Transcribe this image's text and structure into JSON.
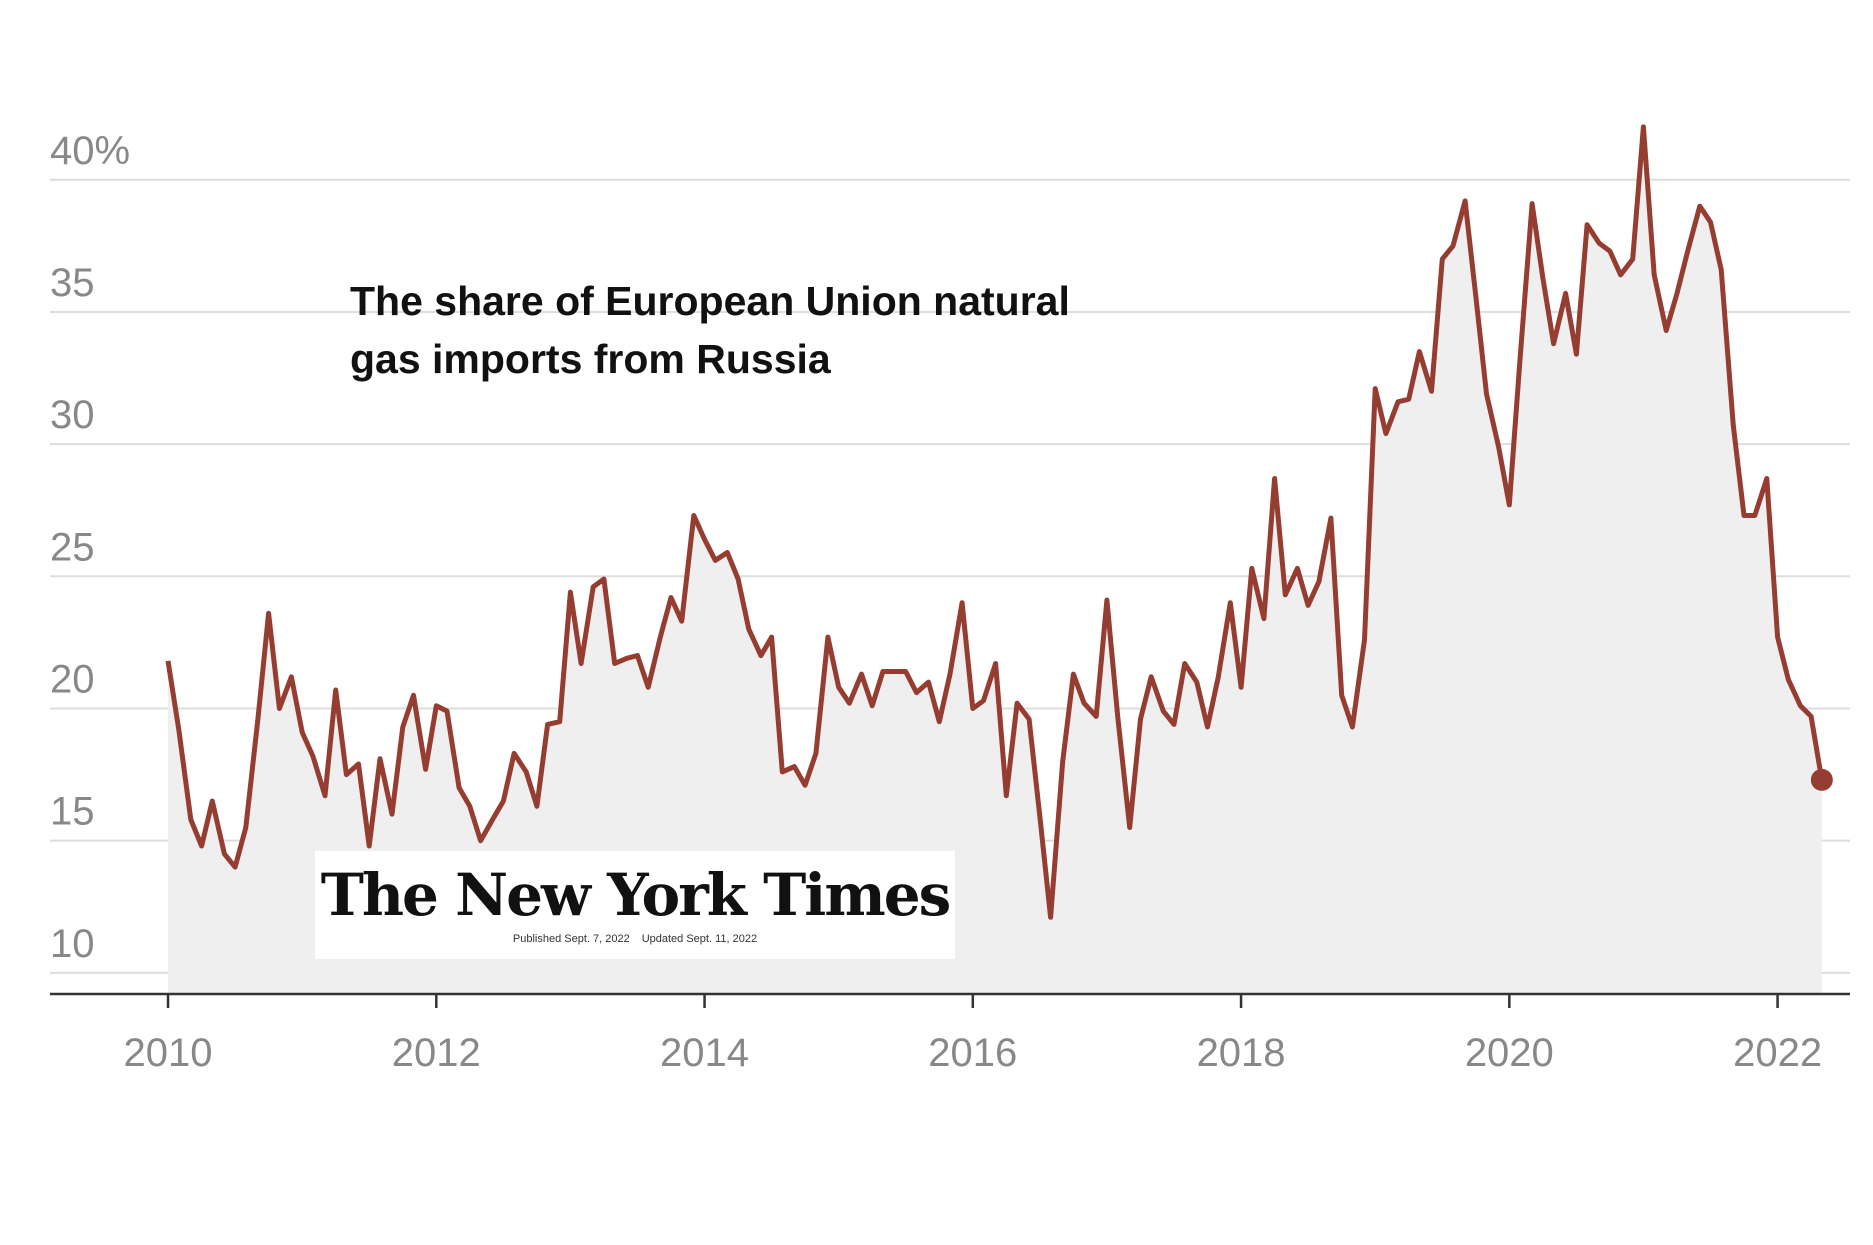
{
  "chart_data": {
    "type": "line",
    "title": "The share of European Union natural gas imports from Russia",
    "x": [
      2010,
      2010.08,
      2010.17,
      2010.25,
      2010.33,
      2010.42,
      2010.5,
      2010.58,
      2010.67,
      2010.75,
      2010.83,
      2010.92,
      2011,
      2011.08,
      2011.17,
      2011.25,
      2011.33,
      2011.42,
      2011.5,
      2011.58,
      2011.67,
      2011.75,
      2011.83,
      2011.92,
      2012,
      2012.08,
      2012.17,
      2012.25,
      2012.33,
      2012.42,
      2012.5,
      2012.58,
      2012.67,
      2012.75,
      2012.83,
      2012.92,
      2013,
      2013.08,
      2013.17,
      2013.25,
      2013.33,
      2013.42,
      2013.5,
      2013.58,
      2013.67,
      2013.75,
      2013.83,
      2013.92,
      2014,
      2014.08,
      2014.17,
      2014.25,
      2014.33,
      2014.42,
      2014.5,
      2014.58,
      2014.67,
      2014.75,
      2014.83,
      2014.92,
      2015,
      2015.08,
      2015.17,
      2015.25,
      2015.33,
      2015.42,
      2015.5,
      2015.58,
      2015.67,
      2015.75,
      2015.83,
      2015.92,
      2016,
      2016.08,
      2016.17,
      2016.25,
      2016.33,
      2016.42,
      2016.5,
      2016.58,
      2016.67,
      2016.75,
      2016.83,
      2016.92,
      2017,
      2017.08,
      2017.17,
      2017.25,
      2017.33,
      2017.42,
      2017.5,
      2017.58,
      2017.67,
      2017.75,
      2017.83,
      2017.92,
      2018,
      2018.08,
      2018.17,
      2018.25,
      2018.33,
      2018.42,
      2018.5,
      2018.58,
      2018.67,
      2018.75,
      2018.83,
      2018.92,
      2019,
      2019.08,
      2019.17,
      2019.25,
      2019.33,
      2019.42,
      2019.5,
      2019.58,
      2019.67,
      2019.75,
      2019.83,
      2019.92,
      2020,
      2020.08,
      2020.17,
      2020.25,
      2020.33,
      2020.42,
      2020.5,
      2020.58,
      2020.67,
      2020.75,
      2020.83,
      2020.92,
      2021,
      2021.08,
      2021.17,
      2021.25,
      2021.33,
      2021.42,
      2021.5,
      2021.58,
      2021.67,
      2021.75,
      2021.83,
      2021.92,
      2022,
      2022.08,
      2022.17,
      2022.25,
      2022.33
    ],
    "series": [
      {
        "name": "Share from Russia",
        "color": "#963d31",
        "values": [
          21.8,
          19.2,
          15.8,
          14.8,
          16.5,
          14.5,
          14.0,
          15.5,
          19.6,
          23.6,
          20.0,
          21.2,
          19.1,
          18.2,
          16.7,
          20.7,
          17.5,
          17.9,
          14.8,
          18.1,
          16.0,
          19.3,
          20.5,
          17.7,
          20.1,
          19.9,
          17.0,
          16.3,
          15.0,
          15.8,
          16.5,
          18.3,
          17.6,
          16.3,
          19.4,
          19.5,
          24.4,
          21.7,
          24.6,
          24.9,
          21.7,
          21.9,
          22.0,
          20.8,
          22.7,
          24.2,
          23.3,
          27.3,
          26.4,
          25.6,
          25.9,
          24.9,
          23.0,
          22.0,
          22.7,
          17.6,
          17.8,
          17.1,
          18.3,
          22.7,
          20.8,
          20.2,
          21.3,
          20.1,
          21.4,
          21.4,
          21.4,
          20.6,
          21.0,
          19.5,
          21.3,
          24.0,
          20.0,
          20.3,
          21.7,
          16.7,
          20.2,
          19.6,
          15.9,
          12.1,
          18.0,
          21.3,
          20.2,
          19.7,
          24.1,
          19.7,
          15.5,
          19.6,
          21.2,
          19.9,
          19.4,
          21.7,
          21.0,
          19.3,
          21.2,
          24.0,
          20.8,
          25.3,
          23.4,
          28.7,
          24.3,
          25.3,
          23.9,
          24.8,
          27.2,
          20.5,
          19.3,
          22.6,
          32.1,
          30.4,
          31.6,
          31.7,
          33.5,
          32.0,
          37.0,
          37.5,
          39.2,
          35.6,
          31.9,
          29.9,
          27.7,
          33.2,
          39.1,
          36.3,
          33.8,
          35.7,
          33.4,
          38.3,
          37.6,
          37.3,
          36.4,
          37.0,
          42.0,
          36.4,
          34.3,
          35.7,
          37.3,
          39.0,
          38.4,
          36.6,
          30.7,
          27.3,
          27.3,
          28.7,
          22.7,
          21.1,
          20.1,
          19.7,
          17.3
        ]
      }
    ],
    "xlim": [
      2009.12,
      2022.54
    ],
    "xticks": [
      2010,
      2012,
      2014,
      2016,
      2018,
      2020,
      2022
    ],
    "ylim": [
      9.2,
      46.8
    ],
    "yticks": [
      10,
      15,
      20,
      25,
      30,
      35,
      {
        "value": 40,
        "label": "40%"
      }
    ],
    "grid": true,
    "area_color": "#efefef"
  },
  "logo": {
    "name": "The New York Times",
    "published": "Published Sept. 7, 2022",
    "updated": "Updated Sept. 11, 2022"
  }
}
